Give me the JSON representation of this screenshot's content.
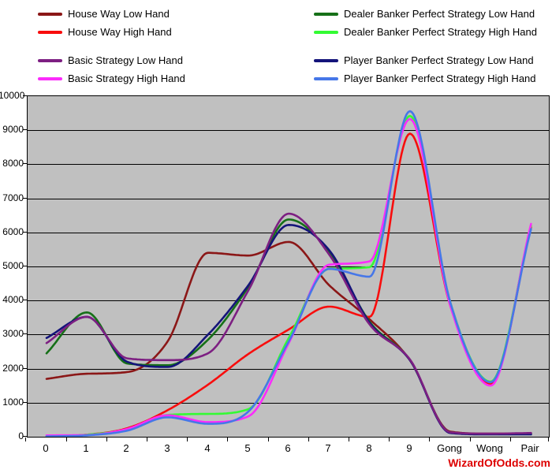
{
  "watermark": {
    "text": "WizardOfOdds.com",
    "color": "#DD0000"
  },
  "legend": {
    "left_column_series": [
      0,
      1,
      5,
      6
    ],
    "right_column_series": [
      2,
      3,
      4,
      7
    ],
    "row_tops": [
      11,
      34,
      70,
      93
    ],
    "column_lefts": [
      48,
      398
    ]
  },
  "chart_data": {
    "type": "line",
    "title": "",
    "xlabel": "",
    "ylabel": "",
    "ylim": [
      0,
      10000
    ],
    "y_ticks": [
      0,
      1000,
      2000,
      3000,
      4000,
      5000,
      6000,
      7000,
      8000,
      9000,
      10000
    ],
    "grid": "horizontal",
    "plot_bg": "#C0C0C0",
    "legend_position": "top",
    "categories": [
      "0",
      "1",
      "2",
      "3",
      "4",
      "5",
      "6",
      "7",
      "8",
      "9",
      "Gong",
      "Wong",
      "Pair"
    ],
    "series": [
      {
        "name": "House Way Low Hand",
        "color": "#8B1717",
        "values": [
          1700,
          1850,
          1900,
          2800,
          5400,
          5320,
          5720,
          4450,
          3450,
          2250,
          150,
          90,
          90
        ]
      },
      {
        "name": "House Way High Hand",
        "color": "#F80D0D",
        "values": [
          10,
          60,
          250,
          780,
          1530,
          2430,
          3150,
          3820,
          3520,
          8900,
          3850,
          1560,
          6150
        ]
      },
      {
        "name": "Dealer Banker Perfect Strategy Low Hand",
        "color": "#167018",
        "values": [
          2450,
          3650,
          2150,
          2100,
          2850,
          4400,
          6380,
          5420,
          3380,
          2260,
          130,
          80,
          80
        ]
      },
      {
        "name": "Dealer Banker Perfect Strategy High Hand",
        "color": "#33FB33",
        "values": [
          10,
          60,
          220,
          640,
          670,
          810,
          2900,
          4930,
          4980,
          9420,
          3950,
          1620,
          6200
        ]
      },
      {
        "name": "Player Banker Perfect Strategy Low Hand",
        "color": "#14147A",
        "values": [
          2900,
          3520,
          2200,
          2050,
          3000,
          4450,
          6220,
          5480,
          3350,
          2250,
          110,
          70,
          70
        ]
      },
      {
        "name": "Basic Strategy Low Hand",
        "color": "#7D1F82",
        "values": [
          2750,
          3520,
          2300,
          2250,
          2450,
          4300,
          6550,
          5350,
          3300,
          2270,
          130,
          90,
          110
        ]
      },
      {
        "name": "Basic Strategy High Hand",
        "color": "#FB2BFB",
        "values": [
          40,
          50,
          230,
          630,
          430,
          600,
          2750,
          5050,
          5150,
          9330,
          3850,
          1500,
          6250
        ]
      },
      {
        "name": "Player Banker Perfect Strategy High Hand",
        "color": "#4677E8",
        "values": [
          10,
          40,
          180,
          570,
          380,
          740,
          2800,
          4930,
          4700,
          9560,
          3950,
          1600,
          6100
        ]
      }
    ]
  }
}
